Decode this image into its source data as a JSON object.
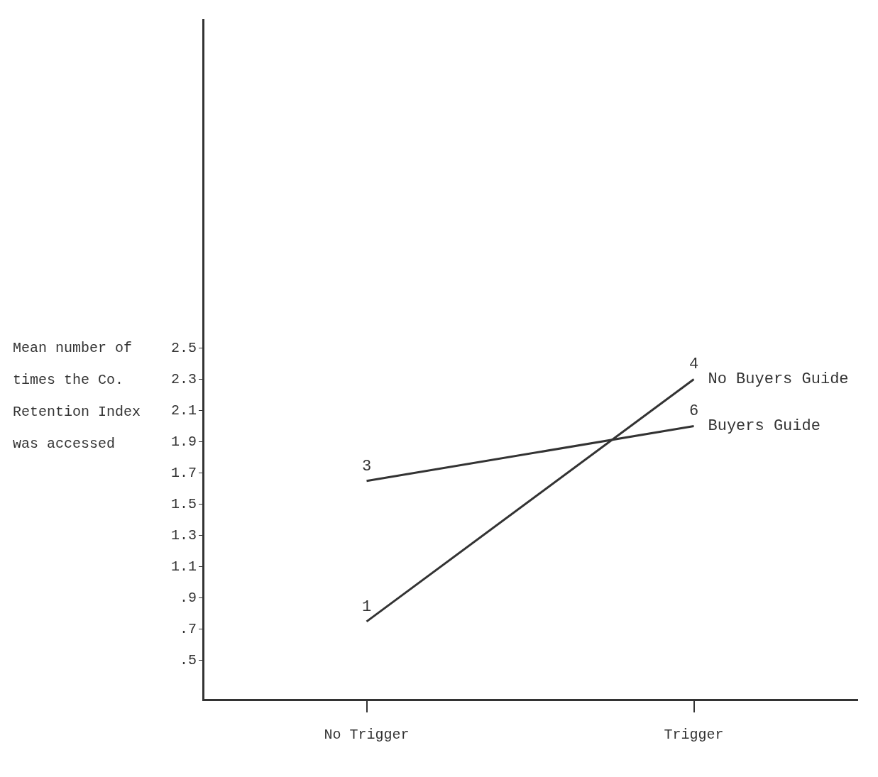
{
  "chart_data": {
    "type": "line",
    "ylabel": "Mean number of times the Co. Retention Index was accessed",
    "categories": [
      "No Trigger",
      "Trigger"
    ],
    "series": [
      {
        "name": "No Buyers Guide",
        "color": "#333333",
        "values": [
          0.75,
          2.3
        ]
      },
      {
        "name": "Buyers Guide",
        "color": "#333333",
        "values": [
          1.65,
          2.0
        ]
      }
    ],
    "ylim": [
      0.25,
      4.6
    ],
    "yticks": [
      {
        "value": 0.5,
        "label": ".5"
      },
      {
        "value": 0.7,
        "label": ".7"
      },
      {
        "value": 0.9,
        "label": ".9"
      },
      1.1,
      1.3,
      1.5,
      1.7,
      1.9,
      2.1,
      2.3,
      2.5
    ],
    "annotations": [
      {
        "text": "1",
        "x": "No Trigger",
        "y": 0.75
      },
      {
        "text": "3",
        "x": "No Trigger",
        "y": 1.65
      },
      {
        "text": "4",
        "x": "Trigger",
        "y": 2.3
      },
      {
        "text": "6",
        "x": "Trigger",
        "y": 2.0
      }
    ],
    "grid": false,
    "legend": false,
    "marker": "none",
    "line_style": "solid"
  }
}
